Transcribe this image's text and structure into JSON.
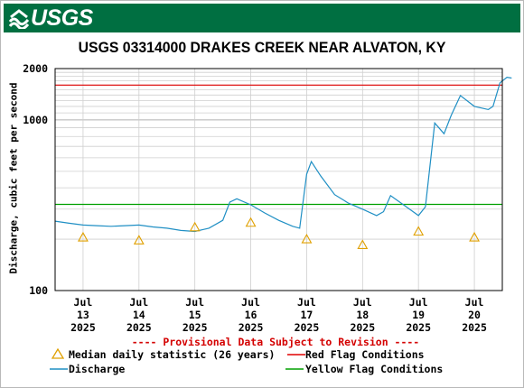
{
  "header": {
    "agency": "USGS",
    "brand_color": "#006f41"
  },
  "chart_data": {
    "type": "line",
    "title": "USGS 03314000 DRAKES CREEK NEAR ALVATON, KY",
    "ylabel": "Discharge, cubic feet per second",
    "y_scale": "log",
    "ylim": [
      100,
      2000
    ],
    "y_ticks": [
      100,
      1000,
      2000
    ],
    "x_tick_labels": [
      [
        "Jul",
        "13",
        "2025"
      ],
      [
        "Jul",
        "14",
        "2025"
      ],
      [
        "Jul",
        "15",
        "2025"
      ],
      [
        "Jul",
        "16",
        "2025"
      ],
      [
        "Jul",
        "17",
        "2025"
      ],
      [
        "Jul",
        "18",
        "2025"
      ],
      [
        "Jul",
        "19",
        "2025"
      ],
      [
        "Jul",
        "20",
        "2025"
      ]
    ],
    "xlim": [
      "2025-07-12 12:00",
      "2025-07-20 12:00"
    ],
    "grid": true,
    "thresholds": [
      {
        "name": "Red Flag Conditions",
        "value": 1600,
        "color": "#e00000"
      },
      {
        "name": "Yellow Flag Conditions",
        "value": 320,
        "color": "#00a000"
      }
    ],
    "series": [
      {
        "name": "Discharge",
        "color": "#1f8fc4",
        "points": [
          [
            "2025-07-12 12:00",
            255
          ],
          [
            "2025-07-12 18:00",
            248
          ],
          [
            "2025-07-13 00:00",
            242
          ],
          [
            "2025-07-13 06:00",
            240
          ],
          [
            "2025-07-13 12:00",
            238
          ],
          [
            "2025-07-13 18:00",
            240
          ],
          [
            "2025-07-14 00:00",
            242
          ],
          [
            "2025-07-14 06:00",
            236
          ],
          [
            "2025-07-14 12:00",
            232
          ],
          [
            "2025-07-14 18:00",
            225
          ],
          [
            "2025-07-15 00:00",
            222
          ],
          [
            "2025-07-15 06:00",
            232
          ],
          [
            "2025-07-15 12:00",
            258
          ],
          [
            "2025-07-15 15:00",
            330
          ],
          [
            "2025-07-15 18:00",
            345
          ],
          [
            "2025-07-16 00:00",
            318
          ],
          [
            "2025-07-16 06:00",
            285
          ],
          [
            "2025-07-16 12:00",
            258
          ],
          [
            "2025-07-16 18:00",
            238
          ],
          [
            "2025-07-16 21:00",
            232
          ],
          [
            "2025-07-17 00:00",
            480
          ],
          [
            "2025-07-17 02:00",
            570
          ],
          [
            "2025-07-17 06:00",
            470
          ],
          [
            "2025-07-17 12:00",
            365
          ],
          [
            "2025-07-17 18:00",
            325
          ],
          [
            "2025-07-18 00:00",
            300
          ],
          [
            "2025-07-18 06:00",
            275
          ],
          [
            "2025-07-18 09:00",
            290
          ],
          [
            "2025-07-18 12:00",
            360
          ],
          [
            "2025-07-18 18:00",
            315
          ],
          [
            "2025-07-19 00:00",
            275
          ],
          [
            "2025-07-19 03:00",
            310
          ],
          [
            "2025-07-19 07:00",
            960
          ],
          [
            "2025-07-19 11:00",
            830
          ],
          [
            "2025-07-19 14:00",
            1060
          ],
          [
            "2025-07-19 18:00",
            1390
          ],
          [
            "2025-07-20 00:00",
            1200
          ],
          [
            "2025-07-20 06:00",
            1150
          ],
          [
            "2025-07-20 08:00",
            1200
          ],
          [
            "2025-07-20 11:00",
            1650
          ],
          [
            "2025-07-20 14:00",
            1780
          ],
          [
            "2025-07-20 16:00",
            1760
          ]
        ]
      },
      {
        "name": "Median daily statistic (26 years)",
        "color": "#e0a000",
        "marker": "triangle",
        "points": [
          [
            "2025-07-13 00:00",
            205
          ],
          [
            "2025-07-14 00:00",
            197
          ],
          [
            "2025-07-15 00:00",
            235
          ],
          [
            "2025-07-16 00:00",
            250
          ],
          [
            "2025-07-17 00:00",
            200
          ],
          [
            "2025-07-18 00:00",
            185
          ],
          [
            "2025-07-19 00:00",
            222
          ],
          [
            "2025-07-20 00:00",
            205
          ]
        ]
      }
    ],
    "annotations": [
      "---- Provisional Data Subject to Revision ----"
    ],
    "legend": [
      "Median daily statistic (26 years)",
      "Red Flag Conditions",
      "Discharge",
      "Yellow Flag Conditions"
    ],
    "legend_placement": "bottom"
  }
}
